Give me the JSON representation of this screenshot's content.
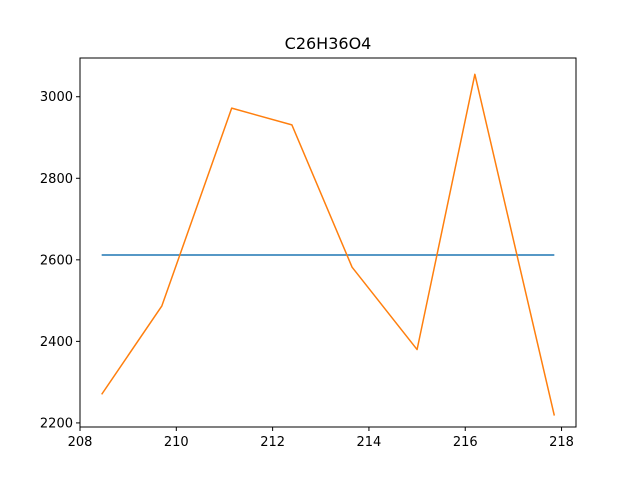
{
  "chart_data": {
    "type": "line",
    "title": "C26H36O4",
    "xlabel": "",
    "ylabel": "",
    "xlim": [
      208.0,
      218.3
    ],
    "ylim": [
      2190,
      3095
    ],
    "xticks": [
      208,
      210,
      212,
      214,
      216,
      218
    ],
    "yticks": [
      2200,
      2400,
      2600,
      2800,
      3000
    ],
    "grid": false,
    "legend": "none",
    "series": [
      {
        "color": "#1f77b4",
        "x": [
          208.45,
          217.85
        ],
        "y": [
          2612,
          2612
        ]
      },
      {
        "color": "#ff7f0e",
        "x": [
          208.45,
          209.7,
          211.15,
          212.4,
          213.65,
          215.0,
          216.2,
          217.85
        ],
        "y": [
          2270,
          2487,
          2972,
          2931,
          2582,
          2380,
          3055,
          2218
        ]
      }
    ]
  }
}
